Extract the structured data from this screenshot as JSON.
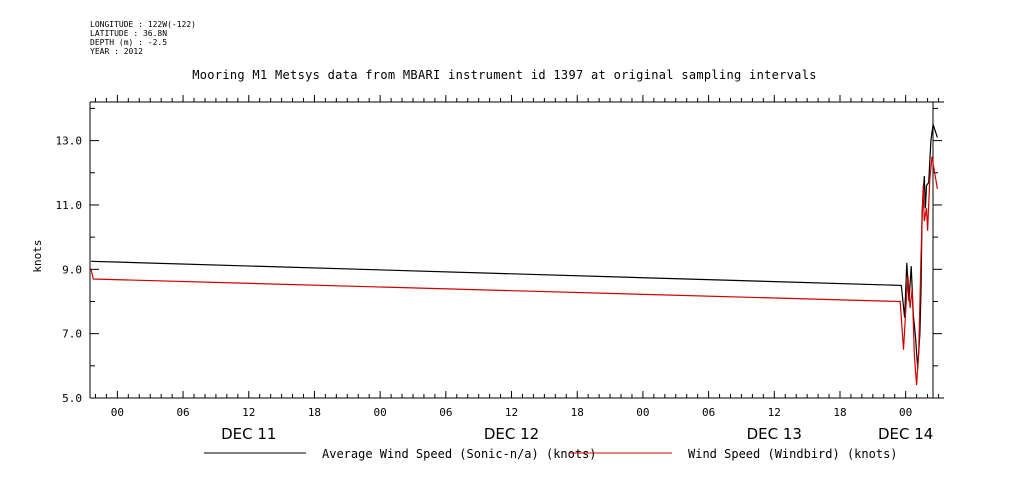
{
  "header": {
    "longitude": "LONGITUDE : 122W(-122)",
    "latitude": "LATITUDE : 36.8N",
    "depth": "DEPTH (m) : -2.5",
    "year": "YEAR : 2012"
  },
  "chart_data": {
    "type": "line",
    "title": "Mooring M1 Metsys data from MBARI instrument id 1397 at original sampling intervals",
    "ylabel": "knots",
    "ylim": [
      5.0,
      14.2
    ],
    "yticks": [
      5.0,
      7.0,
      9.0,
      11.0,
      13.0
    ],
    "ytick_labels": [
      "5.0",
      "7.0",
      "9.0",
      "11.0",
      "13.0"
    ],
    "xlim_hours": [
      -2.5,
      75.5
    ],
    "hour_ticks": [
      {
        "h": 0,
        "label": "00"
      },
      {
        "h": 6,
        "label": "06"
      },
      {
        "h": 12,
        "label": "12"
      },
      {
        "h": 18,
        "label": "18"
      },
      {
        "h": 24,
        "label": "00"
      },
      {
        "h": 30,
        "label": "06"
      },
      {
        "h": 36,
        "label": "12"
      },
      {
        "h": 42,
        "label": "18"
      },
      {
        "h": 48,
        "label": "00"
      },
      {
        "h": 54,
        "label": "06"
      },
      {
        "h": 60,
        "label": "12"
      },
      {
        "h": 66,
        "label": "18"
      },
      {
        "h": 72,
        "label": "00"
      }
    ],
    "day_labels": [
      {
        "h": 12,
        "label": "DEC 11"
      },
      {
        "h": 36,
        "label": "DEC 12"
      },
      {
        "h": 60,
        "label": "DEC 13"
      },
      {
        "h": 72,
        "label": "DEC 14"
      }
    ],
    "grid": false,
    "legend_position": "bottom",
    "series": [
      {
        "name": "Average Wind Speed (Sonic-n/a) (knots)",
        "color": "#000000",
        "points": [
          [
            -2.4,
            9.25
          ],
          [
            71.6,
            8.5
          ],
          [
            71.9,
            7.5
          ],
          [
            72.1,
            9.2
          ],
          [
            72.3,
            8.0
          ],
          [
            72.5,
            9.1
          ],
          [
            72.7,
            7.6
          ],
          [
            72.9,
            6.9
          ],
          [
            73.1,
            5.9
          ],
          [
            73.3,
            7.0
          ],
          [
            73.4,
            8.3
          ],
          [
            73.5,
            10.8
          ],
          [
            73.7,
            11.9
          ],
          [
            73.8,
            10.9
          ],
          [
            73.9,
            11.6
          ],
          [
            74.1,
            11.7
          ],
          [
            74.3,
            13.0
          ],
          [
            74.5,
            13.5
          ],
          [
            74.9,
            13.1
          ]
        ]
      },
      {
        "name": "Wind Speed (Windbird) (knots)",
        "color": "#d00000",
        "points": [
          [
            -2.4,
            9.0
          ],
          [
            -2.2,
            8.7
          ],
          [
            71.5,
            8.0
          ],
          [
            71.8,
            6.5
          ],
          [
            72.0,
            7.7
          ],
          [
            72.2,
            8.8
          ],
          [
            72.4,
            7.8
          ],
          [
            72.6,
            8.4
          ],
          [
            72.8,
            6.3
          ],
          [
            73.0,
            5.4
          ],
          [
            73.2,
            6.5
          ],
          [
            73.4,
            9.4
          ],
          [
            73.6,
            11.6
          ],
          [
            73.7,
            10.5
          ],
          [
            73.9,
            10.9
          ],
          [
            74.0,
            10.2
          ],
          [
            74.2,
            11.8
          ],
          [
            74.4,
            12.5
          ],
          [
            74.6,
            12.1
          ],
          [
            74.9,
            11.5
          ]
        ]
      }
    ]
  },
  "legend": {
    "series1_label": "Average Wind Speed (Sonic-n/a) (knots)",
    "series2_label": "Wind Speed (Windbird) (knots)"
  }
}
